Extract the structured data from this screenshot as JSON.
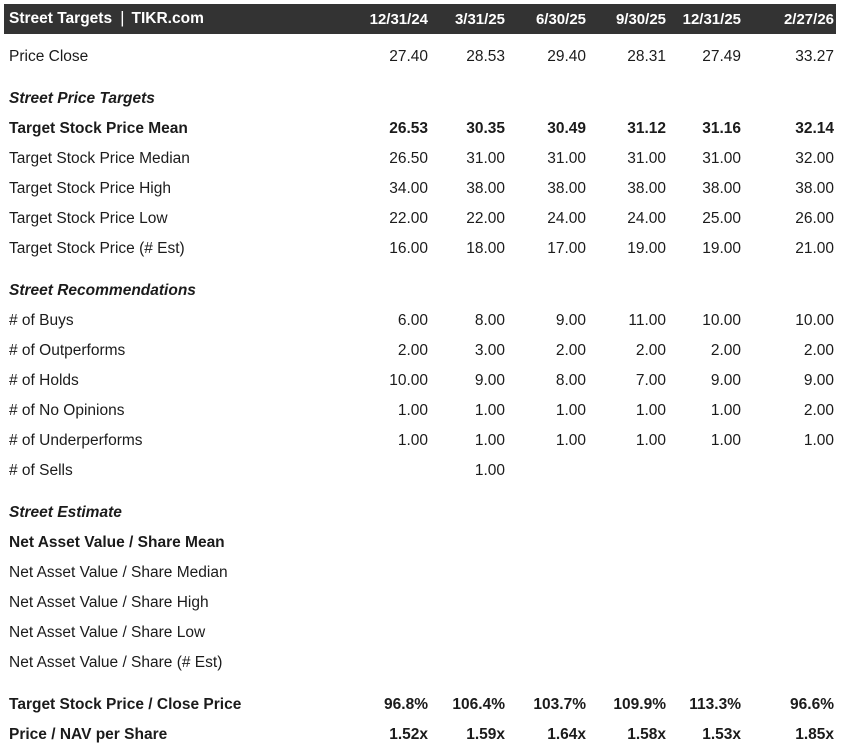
{
  "header": {
    "title": "Street Targets",
    "separator": "|",
    "brand": "TIKR.com",
    "columns": [
      "12/31/24",
      "3/31/25",
      "6/30/25",
      "9/30/25",
      "12/31/25",
      "2/27/26"
    ]
  },
  "colors": {
    "header_bg": "#333333",
    "header_text": "#ffffff",
    "body_text": "#1b1b1b"
  },
  "rows": [
    {
      "label": "Price Close",
      "style": "normal",
      "gap": false,
      "values": [
        "27.40",
        "28.53",
        "29.40",
        "28.31",
        "27.49",
        "33.27"
      ]
    },
    {
      "label": "Street Price Targets",
      "style": "section",
      "gap": true,
      "values": [
        "",
        "",
        "",
        "",
        "",
        ""
      ]
    },
    {
      "label": "Target Stock Price Mean",
      "style": "bold",
      "gap": false,
      "values": [
        "26.53",
        "30.35",
        "30.49",
        "31.12",
        "31.16",
        "32.14"
      ]
    },
    {
      "label": "Target Stock Price Median",
      "style": "normal",
      "gap": false,
      "values": [
        "26.50",
        "31.00",
        "31.00",
        "31.00",
        "31.00",
        "32.00"
      ]
    },
    {
      "label": "Target Stock Price High",
      "style": "normal",
      "gap": false,
      "values": [
        "34.00",
        "38.00",
        "38.00",
        "38.00",
        "38.00",
        "38.00"
      ]
    },
    {
      "label": "Target Stock Price Low",
      "style": "normal",
      "gap": false,
      "values": [
        "22.00",
        "22.00",
        "24.00",
        "24.00",
        "25.00",
        "26.00"
      ]
    },
    {
      "label": "Target Stock Price (# Est)",
      "style": "normal",
      "gap": false,
      "values": [
        "16.00",
        "18.00",
        "17.00",
        "19.00",
        "19.00",
        "21.00"
      ]
    },
    {
      "label": "Street Recommendations",
      "style": "section",
      "gap": true,
      "values": [
        "",
        "",
        "",
        "",
        "",
        ""
      ]
    },
    {
      "label": "# of Buys",
      "style": "normal",
      "gap": false,
      "values": [
        "6.00",
        "8.00",
        "9.00",
        "11.00",
        "10.00",
        "10.00"
      ]
    },
    {
      "label": "# of Outperforms",
      "style": "normal",
      "gap": false,
      "values": [
        "2.00",
        "3.00",
        "2.00",
        "2.00",
        "2.00",
        "2.00"
      ]
    },
    {
      "label": "# of Holds",
      "style": "normal",
      "gap": false,
      "values": [
        "10.00",
        "9.00",
        "8.00",
        "7.00",
        "9.00",
        "9.00"
      ]
    },
    {
      "label": "# of No Opinions",
      "style": "normal",
      "gap": false,
      "values": [
        "1.00",
        "1.00",
        "1.00",
        "1.00",
        "1.00",
        "2.00"
      ]
    },
    {
      "label": "# of Underperforms",
      "style": "normal",
      "gap": false,
      "values": [
        "1.00",
        "1.00",
        "1.00",
        "1.00",
        "1.00",
        "1.00"
      ]
    },
    {
      "label": "# of Sells",
      "style": "normal",
      "gap": false,
      "values": [
        "",
        "1.00",
        "",
        "",
        "",
        ""
      ]
    },
    {
      "label": "Street Estimate",
      "style": "section",
      "gap": true,
      "values": [
        "",
        "",
        "",
        "",
        "",
        ""
      ]
    },
    {
      "label": "Net Asset Value / Share Mean",
      "style": "bold",
      "gap": false,
      "values": [
        "",
        "",
        "",
        "",
        "",
        ""
      ]
    },
    {
      "label": "Net Asset Value / Share Median",
      "style": "normal",
      "gap": false,
      "values": [
        "",
        "",
        "",
        "",
        "",
        ""
      ]
    },
    {
      "label": "Net Asset Value / Share High",
      "style": "normal",
      "gap": false,
      "values": [
        "",
        "",
        "",
        "",
        "",
        ""
      ]
    },
    {
      "label": "Net Asset Value / Share Low",
      "style": "normal",
      "gap": false,
      "values": [
        "",
        "",
        "",
        "",
        "",
        ""
      ]
    },
    {
      "label": "Net Asset Value / Share (# Est)",
      "style": "normal",
      "gap": false,
      "values": [
        "",
        "",
        "",
        "",
        "",
        ""
      ]
    },
    {
      "label": "Target Stock Price / Close Price",
      "style": "bold",
      "gap": true,
      "values": [
        "96.8%",
        "106.4%",
        "103.7%",
        "109.9%",
        "113.3%",
        "96.6%"
      ]
    },
    {
      "label": "Price / NAV per Share",
      "style": "bold",
      "gap": false,
      "values": [
        "1.52x",
        "1.59x",
        "1.64x",
        "1.58x",
        "1.53x",
        "1.85x"
      ]
    }
  ]
}
